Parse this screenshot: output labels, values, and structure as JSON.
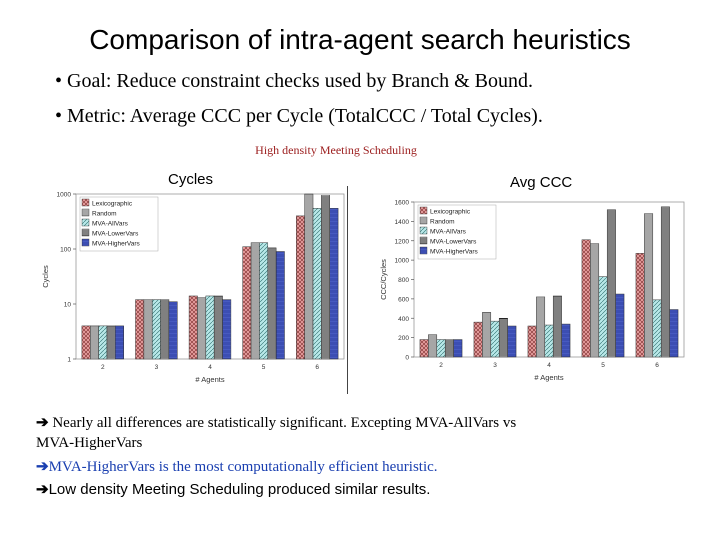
{
  "slide": {
    "title": "Comparison of intra-agent search heuristics",
    "bullets": [
      "• Goal: Reduce constraint checks used by Branch & Bound.",
      "• Metric: Average CCC per Cycle (TotalCCC / Total Cycles)."
    ],
    "subtitle": "High density Meeting Scheduling",
    "chart_labels": [
      "Cycles",
      "Avg CCC"
    ],
    "notes": [
      {
        "arrow": "➔",
        "text": " Nearly all differences are statistically significant. Excepting MVA-AllVars vs"
      },
      {
        "arrow": "",
        "text": "MVA-HigherVars"
      },
      {
        "arrow": "➔",
        "text": "MVA-HigherVars is the most computationally efficient heuristic."
      },
      {
        "arrow": "➔",
        "text": "Low density Meeting Scheduling produced similar results."
      }
    ],
    "colors": {
      "title": "#000000",
      "subtitle": "#9b1c1c",
      "highlight_note": "#1a3fb0",
      "series": [
        "#e8a0a0",
        "#e0e0e0",
        "#b8e8e8",
        "#f0f0f0",
        "#5a6fd8"
      ]
    }
  },
  "chart_data": [
    {
      "type": "bar",
      "title": "",
      "xlabel": "# Agents",
      "ylabel": "Cycles",
      "yscale": "log",
      "ylim": [
        1,
        1000
      ],
      "yticks": [
        "1",
        "10",
        "100",
        "1000"
      ],
      "categories": [
        "2",
        "3",
        "4",
        "5",
        "6"
      ],
      "legend_position": "top-left",
      "series": [
        {
          "name": "Lexicographic",
          "values": [
            4,
            12,
            14,
            110,
            400
          ]
        },
        {
          "name": "Random",
          "values": [
            4,
            12,
            13,
            130,
            1000
          ]
        },
        {
          "name": "MVA-AllVars",
          "values": [
            4,
            12,
            14,
            130,
            550
          ]
        },
        {
          "name": "MVA-LowerVars",
          "values": [
            4,
            12,
            14,
            105,
            950
          ]
        },
        {
          "name": "MVA-HigherVars",
          "values": [
            4,
            11,
            12,
            90,
            550
          ]
        }
      ]
    },
    {
      "type": "bar",
      "title": "",
      "xlabel": "# Agents",
      "ylabel": "CCC/Cycles",
      "yscale": "linear",
      "ylim": [
        0,
        1600
      ],
      "yticks": [
        "0",
        "200",
        "400",
        "600",
        "800",
        "1000",
        "1200",
        "1400",
        "1600"
      ],
      "categories": [
        "2",
        "3",
        "4",
        "5",
        "6"
      ],
      "legend_position": "top-left",
      "series": [
        {
          "name": "Lexicographic",
          "values": [
            180,
            360,
            320,
            1210,
            1070
          ]
        },
        {
          "name": "Random",
          "values": [
            230,
            460,
            620,
            1170,
            1480
          ]
        },
        {
          "name": "MVA-AllVars",
          "values": [
            180,
            370,
            330,
            830,
            590
          ]
        },
        {
          "name": "MVA-LowerVars",
          "values": [
            180,
            400,
            630,
            1520,
            1550
          ]
        },
        {
          "name": "MVA-HigherVars",
          "values": [
            180,
            320,
            340,
            650,
            490
          ]
        }
      ]
    }
  ]
}
